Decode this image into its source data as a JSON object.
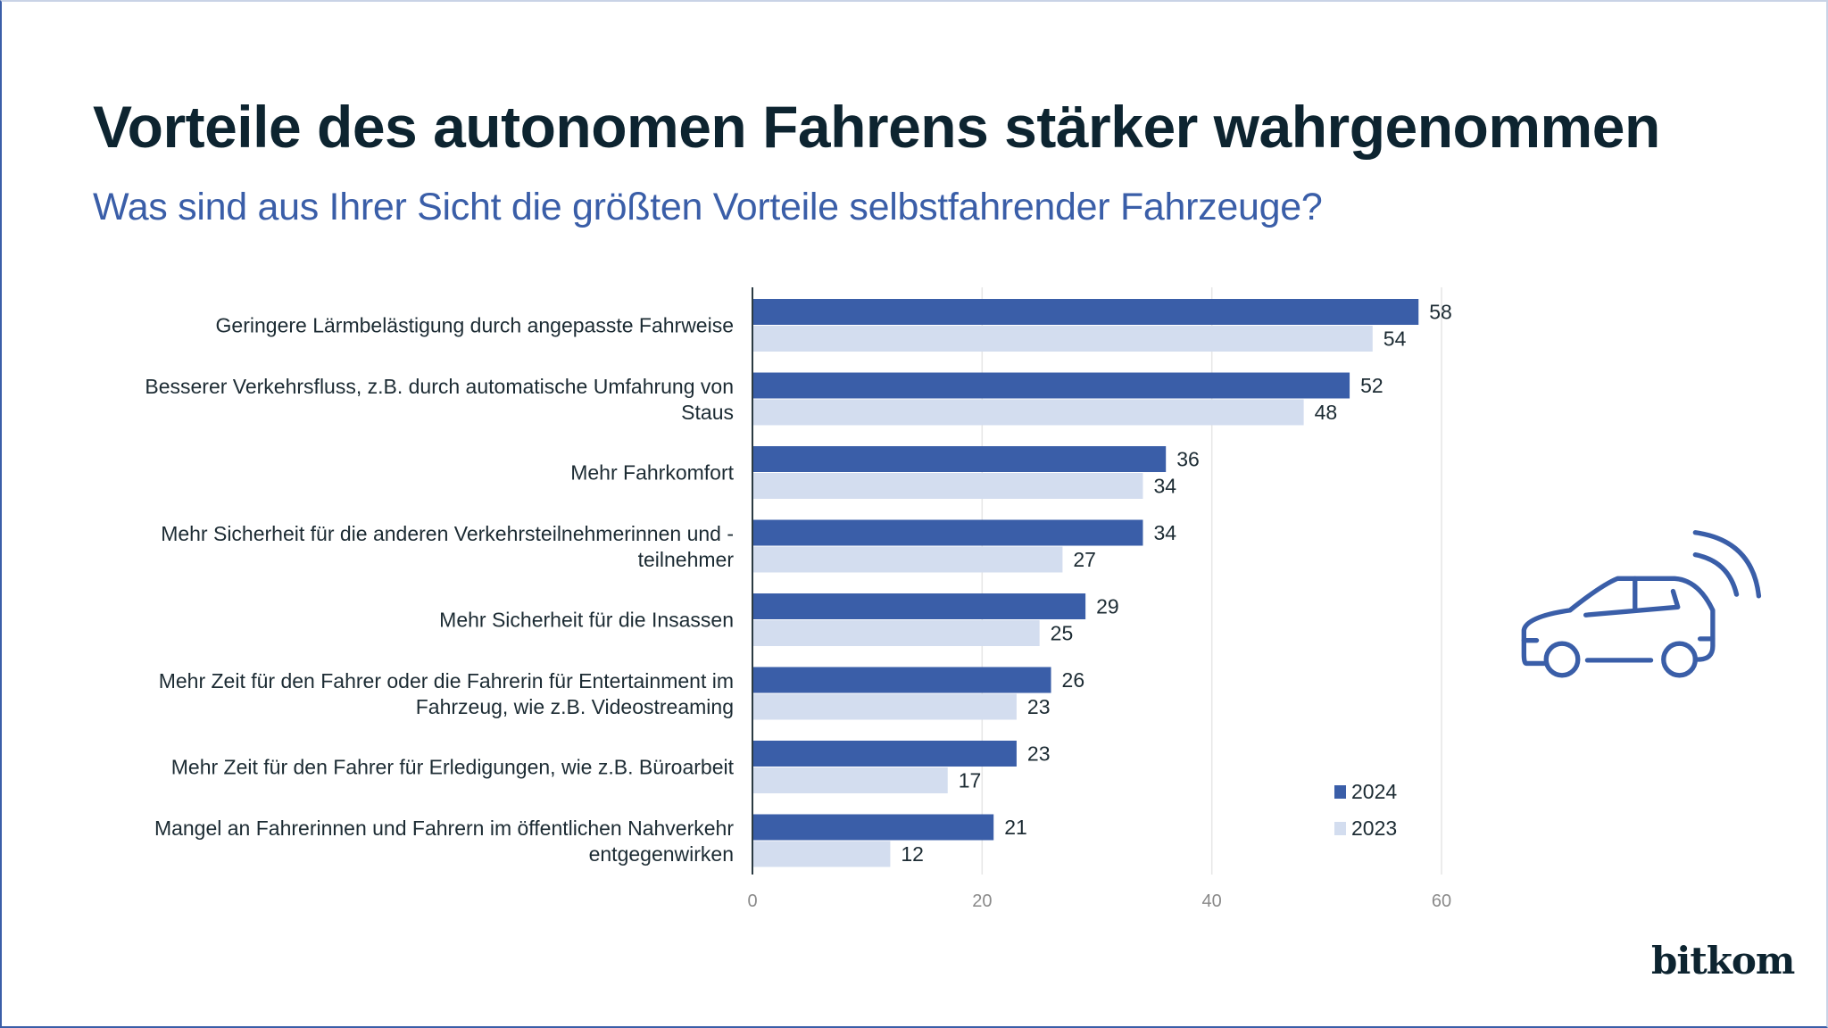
{
  "header": {
    "title": "Vorteile des autonomen Fahrens stärker wahrgenommen",
    "subtitle": "Was sind aus Ihrer Sicht die größten Vorteile selbstfahrender Fahrzeuge?"
  },
  "brand": {
    "logo_text": "bitkom",
    "icon": "autonomous-car-icon"
  },
  "colors": {
    "series_2024": "#3a5ea8",
    "series_2023": "#d3ddef",
    "title": "#0d2430",
    "subtitle": "#3a5ea8",
    "grid": "#e6e6e6"
  },
  "chart_data": {
    "type": "bar",
    "orientation": "horizontal",
    "title": "Vorteile des autonomen Fahrens stärker wahrgenommen",
    "subtitle": "Was sind aus Ihrer Sicht die größten Vorteile selbstfahrender Fahrzeuge?",
    "xlabel": "",
    "ylabel": "",
    "xlim": [
      0,
      60
    ],
    "xticks": [
      "0",
      "20",
      "40",
      "60"
    ],
    "grid": true,
    "legend_position": "bottom-right",
    "categories": [
      [
        "Geringere Lärmbelästigung durch angepasste Fahrweise"
      ],
      [
        "Besserer Verkehrsfluss, z.B. durch automatische Umfahrung von",
        "Staus"
      ],
      [
        "Mehr Fahrkomfort"
      ],
      [
        "Mehr Sicherheit für die anderen Verkehrsteilnehmerinnen und -",
        "teilnehmer"
      ],
      [
        "Mehr Sicherheit für die Insassen"
      ],
      [
        "Mehr Zeit für den Fahrer oder die Fahrerin für Entertainment im",
        "Fahrzeug, wie z.B. Videostreaming"
      ],
      [
        "Mehr Zeit für den Fahrer für Erledigungen, wie z.B. Büroarbeit"
      ],
      [
        "Mangel an Fahrerinnen und Fahrern im öffentlichen Nahverkehr",
        "entgegenwirken"
      ]
    ],
    "series": [
      {
        "name": "2024",
        "color": "#3a5ea8",
        "values": [
          58,
          52,
          36,
          34,
          29,
          26,
          23,
          21
        ]
      },
      {
        "name": "2023",
        "color": "#d3ddef",
        "values": [
          54,
          48,
          34,
          27,
          25,
          23,
          17,
          12
        ]
      }
    ]
  }
}
